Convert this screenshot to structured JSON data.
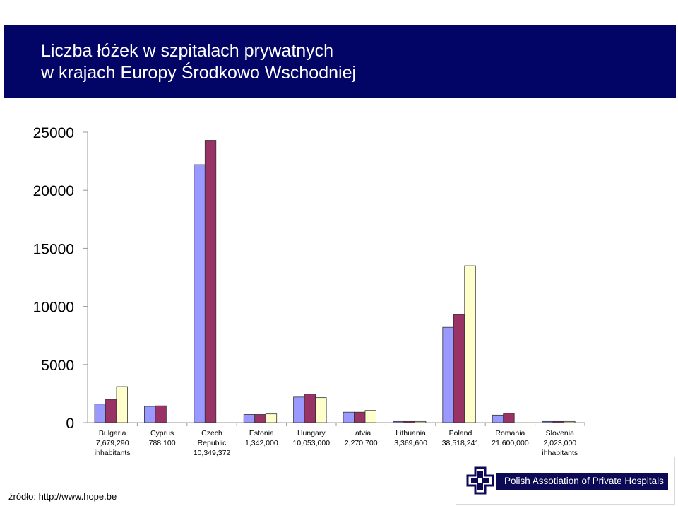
{
  "header": {
    "title_line1": "Liczba łóżek w szpitalach prywatnych",
    "title_line2": "w krajach Europy Środkowo Wschodniej"
  },
  "chart_data": {
    "type": "bar",
    "ylim": [
      0,
      25000
    ],
    "yticks": [
      "0",
      "5000",
      "10000",
      "15000",
      "20000",
      "25000"
    ],
    "grid": false,
    "categories": [
      [
        "Bulgaria",
        "7,679,290",
        "ihhabitants"
      ],
      [
        "Cyprus",
        "788,100"
      ],
      [
        "Czech",
        "Republic",
        "10,349,372"
      ],
      [
        "Estonia",
        "1,342,000"
      ],
      [
        "Hungary",
        "10,053,000"
      ],
      [
        "Latvia",
        "2,270,700"
      ],
      [
        "Lithuania",
        "3,369,600"
      ],
      [
        "Poland",
        "38,518,241"
      ],
      [
        "Romania",
        "21,600,000"
      ],
      [
        "Slovenia",
        "2,023,000",
        "ihhabitants"
      ]
    ],
    "series": [
      {
        "color": "#9999ff",
        "values": [
          1600,
          1400,
          22200,
          700,
          2200,
          900,
          100,
          8200,
          650,
          100
        ]
      },
      {
        "color": "#993366",
        "values": [
          2000,
          1450,
          24300,
          700,
          2450,
          900,
          100,
          9300,
          800,
          100
        ]
      },
      {
        "color": "#ffffcc",
        "values": [
          3100,
          null,
          null,
          750,
          2150,
          1050,
          100,
          13500,
          null,
          100
        ]
      }
    ]
  },
  "footer": {
    "source": "źródło: http://www.hope.be",
    "logo_text": "Polish Assotiation of Private Hospitals",
    "logo_icon": "cross-logo-icon"
  }
}
